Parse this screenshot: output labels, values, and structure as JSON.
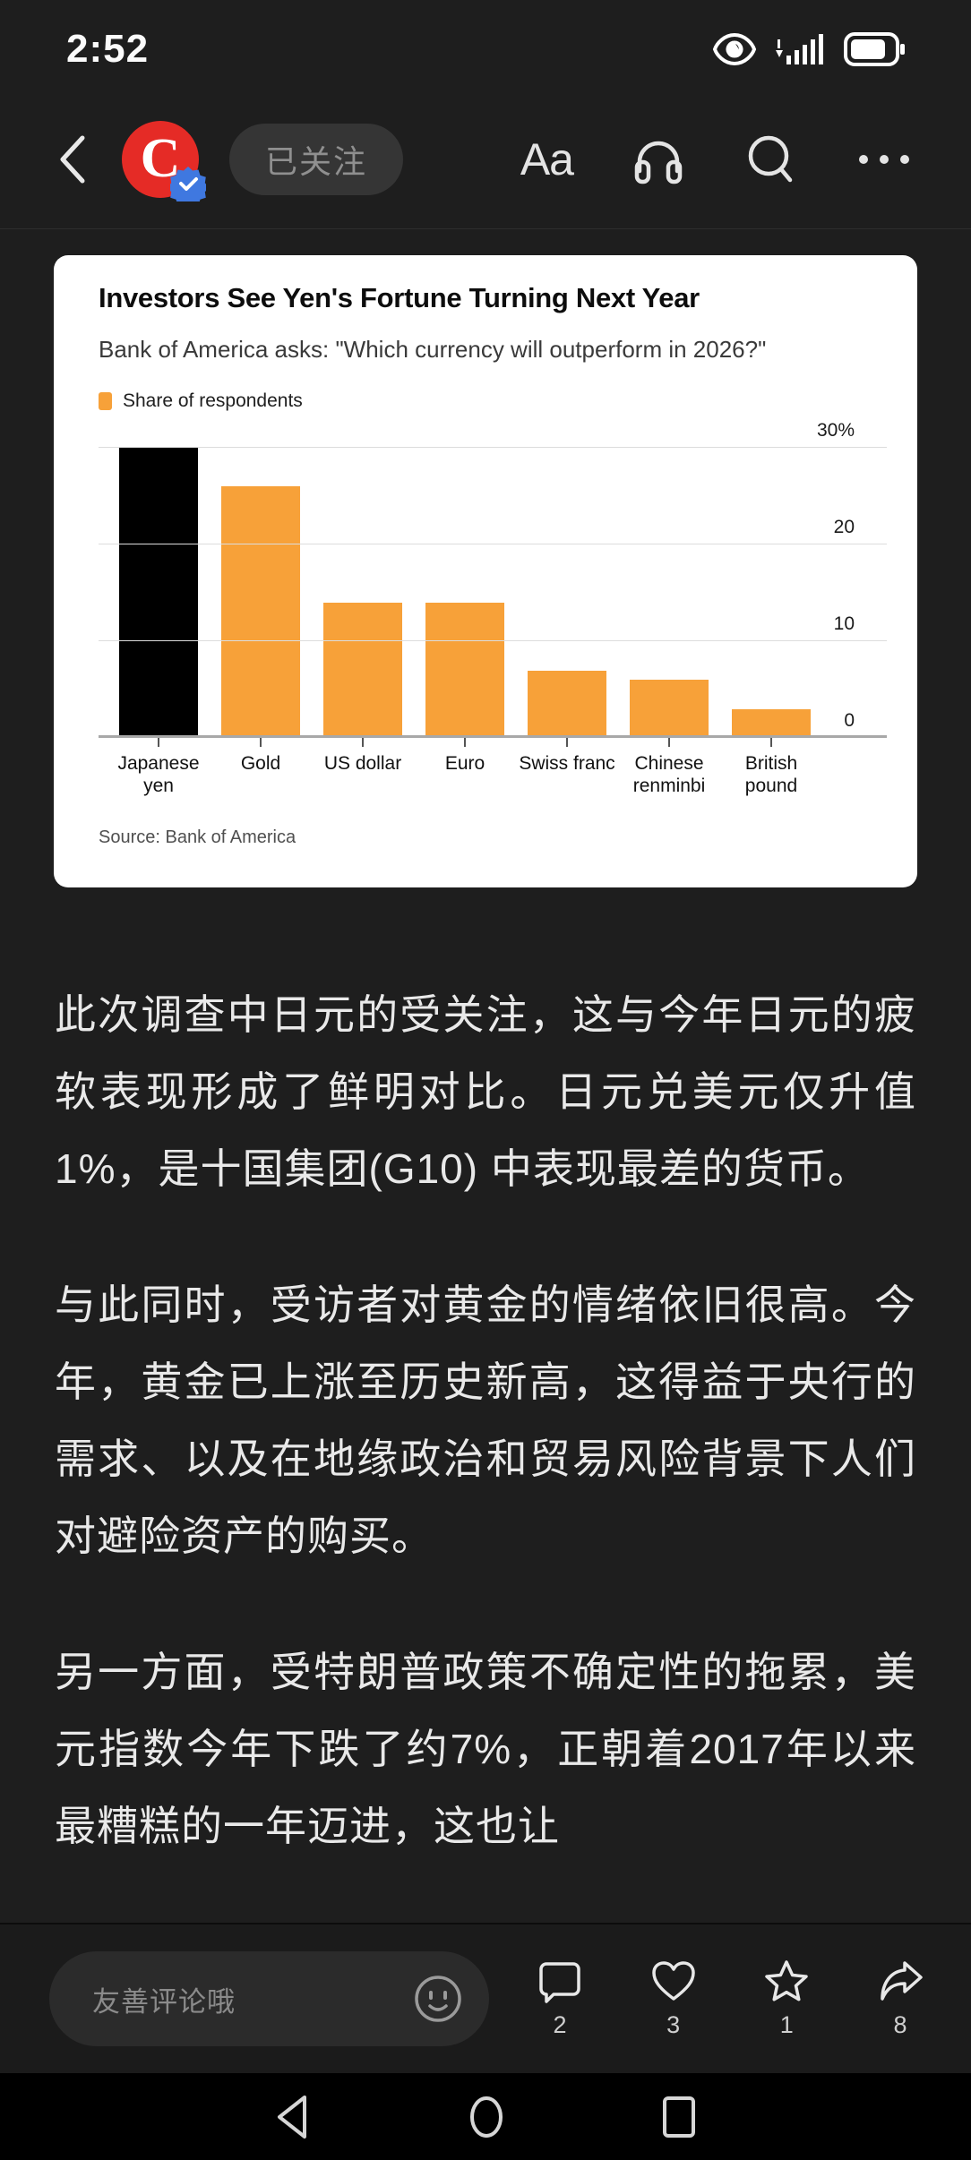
{
  "status_bar": {
    "time": "2:52"
  },
  "header": {
    "avatar_letter": "C",
    "follow_label": "已关注",
    "font_size_label": "Aa"
  },
  "chart_card": {
    "accent_color": "#F7A139"
  },
  "chart_data": {
    "type": "bar",
    "title": "Investors See Yen's Fortune Turning Next Year",
    "subtitle": "Bank of America asks: \"Which currency will outperform in 2026?\"",
    "legend": [
      "Share of respondents"
    ],
    "legend_position": "top-left",
    "categories": [
      "Japanese yen",
      "Gold",
      "US dollar",
      "Euro",
      "Swiss franc",
      "Chinese renminbi",
      "British pound"
    ],
    "values": [
      30,
      26,
      14,
      14,
      7,
      6,
      3
    ],
    "bar_colors": [
      "#000000",
      "#F7A139",
      "#F7A139",
      "#F7A139",
      "#F7A139",
      "#F7A139",
      "#F7A139"
    ],
    "ylim": [
      0,
      30
    ],
    "yticks": [
      0,
      10,
      20,
      30
    ],
    "ytick_labels": [
      "0",
      "10",
      "20",
      "30%"
    ],
    "y_axis_side": "right",
    "grid": true,
    "source": "Source: Bank of America"
  },
  "article": {
    "paragraphs": [
      "此次调查中日元的受关注，这与今年日元的疲软表现形成了鲜明对比。日元兑美元仅升值1%，是十国集团(G10) 中表现最差的货币。",
      "与此同时，受访者对黄金的情绪依旧很高。今年，黄金已上涨至历史新高，这得益于央行的需求、以及在地缘政治和贸易风险背景下人们对避险资产的购买。",
      "另一方面，受特朗普政策不确定性的拖累，美元指数今年下跌了约7%，正朝着2017年以来最糟糕的一年迈进，这也让"
    ]
  },
  "comment_bar": {
    "placeholder": "友善评论哦",
    "actions": [
      {
        "name": "comment",
        "count": "2"
      },
      {
        "name": "like",
        "count": "3"
      },
      {
        "name": "favorite",
        "count": "1"
      },
      {
        "name": "share",
        "count": "8"
      }
    ]
  }
}
